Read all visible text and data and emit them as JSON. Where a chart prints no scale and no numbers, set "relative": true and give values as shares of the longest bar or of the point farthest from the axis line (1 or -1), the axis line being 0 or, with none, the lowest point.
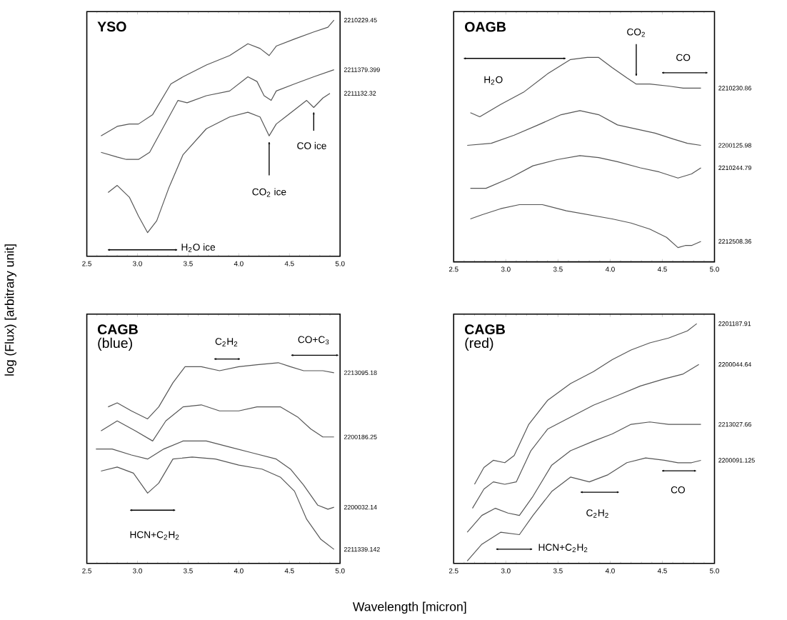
{
  "chart_data": [
    {
      "type": "line",
      "title": "YSO",
      "ylabel": "log (Flux) [arbitrary unit]",
      "relative": true,
      "xlim": [
        2.5,
        5.0
      ],
      "xticks": [
        {
          "value": 2.5,
          "label": "2.5"
        },
        {
          "value": 3.0,
          "label": "3.0"
        },
        {
          "value": 3.5,
          "label": "3.5"
        },
        {
          "value": 4.0,
          "label": "4.0"
        },
        {
          "value": 4.5,
          "label": "4.5"
        },
        {
          "value": 5.0,
          "label": "5.0"
        }
      ],
      "annotations": [
        "H$_{2}$O ice",
        "CO$_{2}$ ice",
        "CO ice"
      ],
      "series": [
        {
          "name": "2210229.45",
          "color": "#555555",
          "x": [
            2.64,
            2.8,
            2.92,
            3.01,
            3.15,
            3.33,
            3.45,
            3.68,
            3.91,
            4.09,
            4.21,
            4.3,
            4.37,
            4.55,
            4.74,
            4.88,
            4.94
          ],
          "values": [
            0.51,
            0.55,
            0.56,
            0.56,
            0.6,
            0.73,
            0.76,
            0.81,
            0.85,
            0.9,
            0.88,
            0.85,
            0.89,
            0.92,
            0.95,
            0.97,
            1.0
          ]
        },
        {
          "name": "2211379.399",
          "color": "#555555",
          "x": [
            2.64,
            2.8,
            2.89,
            3.01,
            3.12,
            3.26,
            3.4,
            3.49,
            3.68,
            3.91,
            4.09,
            4.18,
            4.25,
            4.32,
            4.37,
            4.55,
            4.74,
            4.94
          ],
          "values": [
            0.44,
            0.42,
            0.41,
            0.41,
            0.44,
            0.55,
            0.66,
            0.65,
            0.68,
            0.7,
            0.76,
            0.74,
            0.68,
            0.66,
            0.7,
            0.73,
            0.76,
            0.79
          ]
        },
        {
          "name": "2211132.32",
          "color": "#555555",
          "x": [
            2.71,
            2.8,
            2.92,
            3.01,
            3.1,
            3.19,
            3.31,
            3.45,
            3.68,
            3.91,
            4.09,
            4.21,
            4.3,
            4.37,
            4.46,
            4.58,
            4.67,
            4.74,
            4.83,
            4.9
          ],
          "values": [
            0.27,
            0.3,
            0.25,
            0.17,
            0.1,
            0.15,
            0.29,
            0.43,
            0.54,
            0.59,
            0.61,
            0.59,
            0.51,
            0.56,
            0.59,
            0.63,
            0.66,
            0.63,
            0.67,
            0.69
          ]
        }
      ]
    },
    {
      "type": "line",
      "title": "OAGB",
      "relative": true,
      "xlim": [
        2.5,
        5.0
      ],
      "xticks": [
        {
          "value": 2.5,
          "label": "2.5"
        },
        {
          "value": 3.0,
          "label": "3.0"
        },
        {
          "value": 3.5,
          "label": "3.5"
        },
        {
          "value": 4.0,
          "label": "4.0"
        },
        {
          "value": 4.5,
          "label": "4.5"
        },
        {
          "value": 5.0,
          "label": "5.0"
        }
      ],
      "annotations": [
        "H$_{2}$O",
        "CO$_{2}$",
        "CO"
      ],
      "series": [
        {
          "name": "2210230.86",
          "color": "#555555",
          "x": [
            2.66,
            2.75,
            2.95,
            3.17,
            3.4,
            3.62,
            3.78,
            3.89,
            4.02,
            4.16,
            4.25,
            4.38,
            4.56,
            4.7,
            4.87
          ],
          "values": [
            0.73,
            0.71,
            0.77,
            0.83,
            0.92,
            0.99,
            1.0,
            1.0,
            0.95,
            0.9,
            0.87,
            0.87,
            0.86,
            0.85,
            0.85
          ]
        },
        {
          "name": "2200125.98",
          "color": "#555555",
          "x": [
            2.63,
            2.86,
            3.08,
            3.31,
            3.53,
            3.71,
            3.89,
            4.07,
            4.25,
            4.43,
            4.61,
            4.74,
            4.87
          ],
          "values": [
            0.57,
            0.58,
            0.62,
            0.67,
            0.72,
            0.74,
            0.72,
            0.67,
            0.65,
            0.63,
            0.6,
            0.58,
            0.57
          ]
        },
        {
          "name": "2210244.79",
          "color": "#555555",
          "x": [
            2.66,
            2.81,
            3.04,
            3.26,
            3.49,
            3.71,
            3.89,
            4.07,
            4.29,
            4.47,
            4.65,
            4.78,
            4.87
          ],
          "values": [
            0.36,
            0.36,
            0.41,
            0.47,
            0.5,
            0.52,
            0.51,
            0.49,
            0.46,
            0.44,
            0.41,
            0.43,
            0.46
          ]
        },
        {
          "name": "2212508.36",
          "color": "#555555",
          "x": [
            2.66,
            2.77,
            2.95,
            3.13,
            3.35,
            3.58,
            3.8,
            4.02,
            4.2,
            4.38,
            4.54,
            4.65,
            4.72,
            4.78,
            4.87
          ],
          "values": [
            0.21,
            0.23,
            0.26,
            0.28,
            0.28,
            0.25,
            0.23,
            0.21,
            0.19,
            0.16,
            0.12,
            0.07,
            0.08,
            0.08,
            0.1
          ]
        }
      ]
    },
    {
      "type": "line",
      "title": "CAGB",
      "subtitle": "(blue)",
      "xlabel": "Wavelength [micron]",
      "relative": true,
      "xlim": [
        2.5,
        5.0
      ],
      "xticks": [
        {
          "value": 2.5,
          "label": "2.5"
        },
        {
          "value": 3.0,
          "label": "3.0"
        },
        {
          "value": 3.5,
          "label": "3.5"
        },
        {
          "value": 4.0,
          "label": "4.0"
        },
        {
          "value": 4.5,
          "label": "4.5"
        },
        {
          "value": 5.0,
          "label": "5.0"
        }
      ],
      "annotations": [
        "C$_{2}$H$_{2}$",
        "CO+C$_{3}$",
        "HCN+C$_{2}$H$_{2}$"
      ],
      "series": [
        {
          "name": "2213095.18",
          "color": "#555555",
          "x": [
            2.71,
            2.8,
            2.94,
            3.1,
            3.21,
            3.35,
            3.47,
            3.63,
            3.81,
            4.0,
            4.18,
            4.39,
            4.51,
            4.64,
            4.83,
            4.94
          ],
          "values": [
            0.78,
            0.8,
            0.76,
            0.72,
            0.78,
            0.9,
            0.98,
            0.98,
            0.96,
            0.98,
            0.99,
            1.0,
            0.98,
            0.96,
            0.96,
            0.95
          ]
        },
        {
          "name": "2200186.25",
          "color": "#555555",
          "x": [
            2.64,
            2.8,
            2.98,
            3.15,
            3.28,
            3.45,
            3.63,
            3.81,
            4.0,
            4.18,
            4.41,
            4.58,
            4.71,
            4.83,
            4.94
          ],
          "values": [
            0.66,
            0.71,
            0.66,
            0.61,
            0.71,
            0.78,
            0.79,
            0.76,
            0.76,
            0.78,
            0.78,
            0.73,
            0.67,
            0.63,
            0.63
          ]
        },
        {
          "name": "2200032.14",
          "color": "#555555",
          "x": [
            2.59,
            2.75,
            2.94,
            3.1,
            3.26,
            3.45,
            3.68,
            3.91,
            4.14,
            4.37,
            4.51,
            4.64,
            4.78,
            4.88,
            4.94
          ],
          "values": [
            0.57,
            0.57,
            0.54,
            0.52,
            0.57,
            0.61,
            0.61,
            0.58,
            0.55,
            0.52,
            0.47,
            0.39,
            0.29,
            0.27,
            0.28
          ]
        },
        {
          "name": "2211339.142",
          "color": "#555555",
          "x": [
            2.64,
            2.8,
            2.96,
            3.1,
            3.21,
            3.35,
            3.54,
            3.77,
            4.0,
            4.23,
            4.41,
            4.55,
            4.67,
            4.81,
            4.94
          ],
          "values": [
            0.46,
            0.48,
            0.45,
            0.35,
            0.4,
            0.52,
            0.53,
            0.52,
            0.49,
            0.47,
            0.43,
            0.36,
            0.22,
            0.12,
            0.07
          ]
        }
      ]
    },
    {
      "type": "line",
      "title": "CAGB",
      "subtitle": "(red)",
      "relative": true,
      "xlim": [
        2.5,
        5.0
      ],
      "xticks": [
        {
          "value": 2.5,
          "label": "2.5"
        },
        {
          "value": 3.0,
          "label": "3.0"
        },
        {
          "value": 3.5,
          "label": "3.5"
        },
        {
          "value": 4.0,
          "label": "4.0"
        },
        {
          "value": 4.5,
          "label": "4.5"
        },
        {
          "value": 5.0,
          "label": "5.0"
        }
      ],
      "annotations": [
        "C$_{2}$H$_{2}$",
        "CO",
        "HCN+C$_{2}$H$_{2}$"
      ],
      "series": [
        {
          "name": "2201187.91",
          "color": "#555555",
          "x": [
            2.7,
            2.79,
            2.88,
            2.99,
            3.08,
            3.22,
            3.4,
            3.62,
            3.84,
            4.02,
            4.2,
            4.38,
            4.56,
            4.74,
            4.83
          ],
          "values": [
            0.33,
            0.4,
            0.43,
            0.42,
            0.45,
            0.58,
            0.68,
            0.75,
            0.8,
            0.85,
            0.89,
            0.92,
            0.94,
            0.97,
            1.0
          ]
        },
        {
          "name": "2200044.64",
          "color": "#555555",
          "x": [
            2.68,
            2.79,
            2.88,
            2.99,
            3.1,
            3.24,
            3.4,
            3.62,
            3.84,
            4.07,
            4.29,
            4.52,
            4.7,
            4.85
          ],
          "values": [
            0.23,
            0.31,
            0.34,
            0.33,
            0.34,
            0.47,
            0.56,
            0.61,
            0.66,
            0.7,
            0.74,
            0.77,
            0.79,
            0.83
          ]
        },
        {
          "name": "2213027.66",
          "color": "#555555",
          "x": [
            2.63,
            2.77,
            2.9,
            3.02,
            3.13,
            3.26,
            3.44,
            3.62,
            3.84,
            4.02,
            4.2,
            4.38,
            4.56,
            4.74,
            4.87
          ],
          "values": [
            0.13,
            0.2,
            0.23,
            0.21,
            0.2,
            0.28,
            0.41,
            0.47,
            0.51,
            0.54,
            0.58,
            0.59,
            0.58,
            0.58,
            0.58
          ]
        },
        {
          "name": "2200091.125",
          "color": "#555555",
          "x": [
            2.63,
            2.77,
            2.95,
            3.13,
            3.26,
            3.44,
            3.62,
            3.8,
            3.98,
            4.16,
            4.34,
            4.52,
            4.65,
            4.78,
            4.87
          ],
          "values": [
            0.01,
            0.08,
            0.13,
            0.12,
            0.2,
            0.3,
            0.36,
            0.34,
            0.37,
            0.42,
            0.44,
            0.43,
            0.42,
            0.42,
            0.43
          ]
        }
      ]
    }
  ]
}
